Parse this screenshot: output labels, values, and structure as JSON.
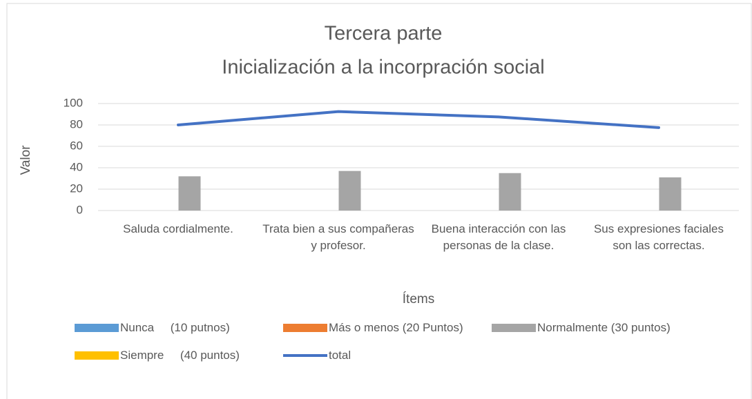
{
  "chart_data": {
    "type": "bar_line",
    "title": "Tercera parte",
    "subtitle": "Inicialización a la incorpración social",
    "x_label": "Ítems",
    "y_label": "Valor",
    "categories": [
      "Saluda cordialmente.",
      "Trata bien a sus compañeras y profesor.",
      "Buena interacción con las personas de la clase.",
      "Sus expresiones faciales son las correctas."
    ],
    "series": [
      {
        "name": "Nunca     (10 putnos)",
        "color": "#5b9bd5",
        "kind": "bar",
        "values": [
          0,
          0,
          0,
          0
        ]
      },
      {
        "name": "Más o menos (20 Puntos)",
        "color": "#ed7d31",
        "kind": "bar",
        "values": [
          0,
          0,
          0,
          0
        ]
      },
      {
        "name": "Normalmente (30 puntos)",
        "color": "#a5a5a5",
        "kind": "bar",
        "values": [
          32,
          37,
          35,
          31
        ]
      },
      {
        "name": "Siempre     (40 puntos)",
        "color": "#ffc000",
        "kind": "bar",
        "values": [
          0,
          0,
          0,
          0
        ]
      },
      {
        "name": "total",
        "color": "#4472c4",
        "kind": "line",
        "values": [
          80,
          92.5,
          87.5,
          77.5
        ]
      }
    ],
    "ylim": [
      0,
      100
    ],
    "yticks": [
      0,
      20,
      40,
      60,
      80,
      100
    ],
    "grid": true,
    "legend": "bottom"
  }
}
